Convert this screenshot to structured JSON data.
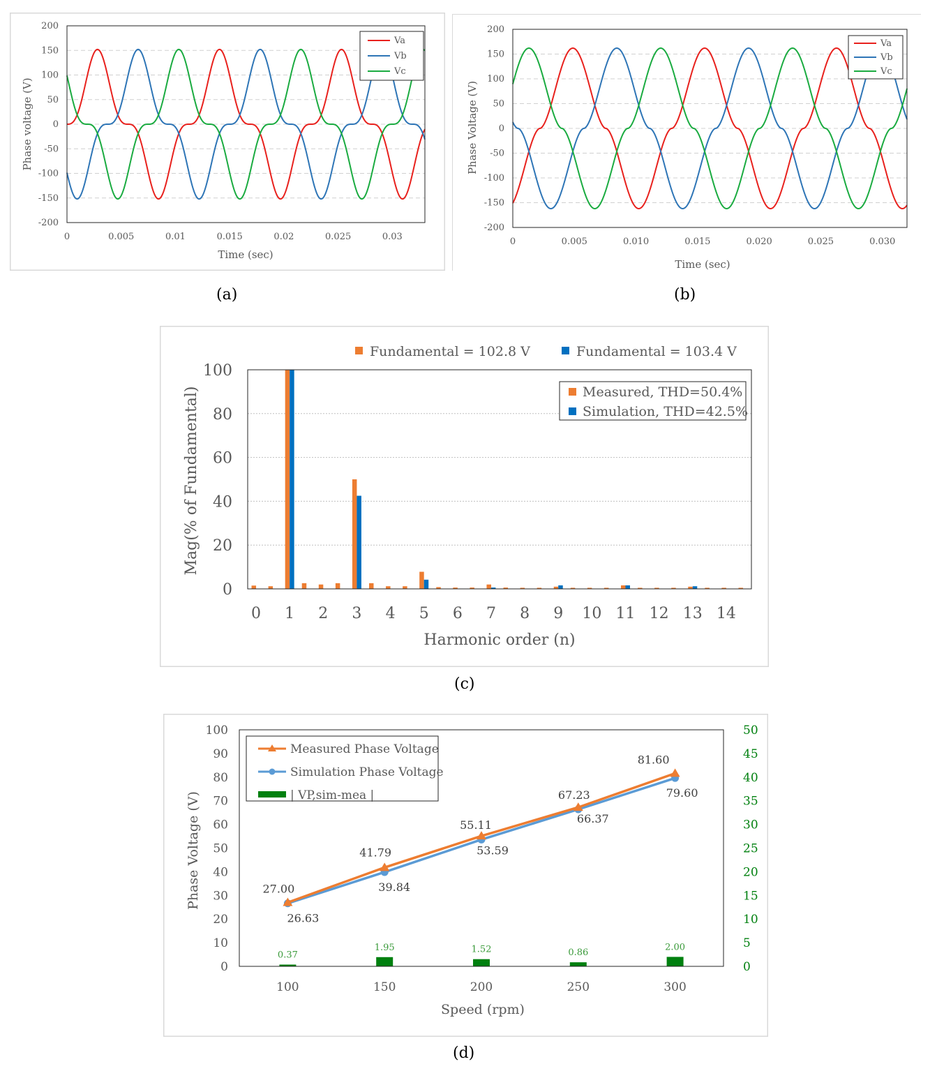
{
  "captions": {
    "a": "(a)",
    "b": "(b)",
    "c": "(c)",
    "d": "(d)"
  },
  "chart_data": [
    {
      "id": "a",
      "type": "line",
      "title": "",
      "xlabel": "Time (sec)",
      "ylabel": "Phase voltage (V)",
      "xlim": [
        0,
        0.033
      ],
      "ylim": [
        -200,
        200
      ],
      "xticks": [
        "0",
        "0.005",
        "0.01",
        "0.015",
        "0.02",
        "0.025",
        "0.03"
      ],
      "xtick_values": [
        0,
        0.005,
        0.01,
        0.015,
        0.02,
        0.025,
        0.03
      ],
      "yticks": [
        "200",
        "150",
        "100",
        "50",
        "0",
        "-50",
        "-100",
        "-150",
        "-200"
      ],
      "ytick_values": [
        200,
        150,
        100,
        50,
        0,
        -50,
        -100,
        -150,
        -200
      ],
      "legend_position": "top-right",
      "waveform": {
        "amplitude": 152,
        "period_sec": 0.01125,
        "sharpness": 3.0
      },
      "series": [
        {
          "name": "Va",
          "color": "#e8211d",
          "phase_deg": 0
        },
        {
          "name": "Vb",
          "color": "#2e75b6",
          "phase_deg": -120
        },
        {
          "name": "Vc",
          "color": "#1aab40",
          "phase_deg": 120
        }
      ]
    },
    {
      "id": "b",
      "type": "line",
      "title": "",
      "xlabel": "Time (sec)",
      "ylabel": "Phase Voltage (V)",
      "xlim": [
        0,
        0.032
      ],
      "ylim": [
        -200,
        200
      ],
      "xticks": [
        "0",
        "0.005",
        "0.010",
        "0.015",
        "0.020",
        "0.025",
        "0.030"
      ],
      "xtick_values": [
        0,
        0.005,
        0.01,
        0.015,
        0.02,
        0.025,
        0.03
      ],
      "yticks": [
        "200",
        "150",
        "100",
        "50",
        "0",
        "-50",
        "-100",
        "-150",
        "-200"
      ],
      "ytick_values": [
        200,
        150,
        100,
        50,
        0,
        -50,
        -100,
        -150,
        -200
      ],
      "legend_position": "top-right",
      "waveform": {
        "amplitude": 162,
        "period_sec": 0.0107,
        "sharpness": 1.8
      },
      "series": [
        {
          "name": "Va",
          "color": "#e8211d",
          "phase_deg": -74
        },
        {
          "name": "Vb",
          "color": "#2e75b6",
          "phase_deg": 166
        },
        {
          "name": "Vc",
          "color": "#1aab40",
          "phase_deg": 46
        }
      ]
    },
    {
      "id": "c",
      "type": "bar",
      "title": "",
      "xlabel": "Harmonic order (n)",
      "ylabel": "Mag(% of Fundamental)",
      "ylim": [
        0,
        100
      ],
      "yticks": [
        "100",
        "80",
        "60",
        "40",
        "20",
        "0"
      ],
      "ytick_values": [
        100,
        80,
        60,
        40,
        20,
        0
      ],
      "categories": [
        "0",
        "",
        "1",
        "",
        "2",
        "",
        "3",
        "",
        "4",
        "",
        "5",
        "",
        "6",
        "",
        "7",
        "",
        "8",
        "",
        "9",
        "",
        "10",
        "",
        "11",
        "",
        "12",
        "",
        "13",
        "",
        "14",
        ""
      ],
      "top_legend": [
        {
          "label": "Fundamental = 102.8 V",
          "color": "#ed7d31"
        },
        {
          "label": "Fundamental = 103.4 V",
          "color": "#0070c0"
        }
      ],
      "legend_position": "top-right",
      "series": [
        {
          "name": "Measured, THD=50.4%",
          "color": "#ed7d31",
          "values": [
            1.5,
            1.2,
            100,
            2.6,
            2.0,
            2.6,
            50,
            2.6,
            1.2,
            1.2,
            7.8,
            0.8,
            0.6,
            0.6,
            2.0,
            0.6,
            0.5,
            0.5,
            1.0,
            0.5,
            0.5,
            0.5,
            1.6,
            0.5,
            0.5,
            0.5,
            1.0,
            0.5,
            0.5,
            0.5
          ]
        },
        {
          "name": "Simulation, THD=42.5%",
          "color": "#0070c0",
          "values": [
            0,
            0,
            100,
            0,
            0,
            0,
            42.5,
            0,
            0,
            0,
            4.2,
            0,
            0,
            0,
            0.6,
            0,
            0,
            0,
            1.6,
            0,
            0,
            0,
            1.6,
            0,
            0,
            0,
            1.2,
            0,
            0,
            0
          ]
        }
      ]
    },
    {
      "id": "d",
      "type": "line",
      "title": "",
      "xlabel": "Speed (rpm)",
      "ylabel": "Phase Voltage (V)",
      "categories": [
        "100",
        "150",
        "200",
        "250",
        "300"
      ],
      "ylim": [
        0,
        100
      ],
      "y2lim": [
        0,
        50
      ],
      "yticks": [
        "0",
        "10",
        "20",
        "30",
        "40",
        "50",
        "60",
        "70",
        "80",
        "90",
        "100"
      ],
      "ytick_values": [
        0,
        10,
        20,
        30,
        40,
        50,
        60,
        70,
        80,
        90,
        100
      ],
      "y2ticks": [
        "0",
        "5",
        "10",
        "15",
        "20",
        "25",
        "30",
        "35",
        "40",
        "45",
        "50"
      ],
      "y2tick_values": [
        0,
        5,
        10,
        15,
        20,
        25,
        30,
        35,
        40,
        45,
        50
      ],
      "legend_position": "top-left",
      "series": [
        {
          "name": "Measured Phase Voltage",
          "color": "#ed7d31",
          "marker": "triangle",
          "values": [
            27.0,
            41.79,
            55.11,
            67.23,
            81.6
          ],
          "labels": [
            "27.00",
            "41.79",
            "55.11",
            "67.23",
            "81.60"
          ]
        },
        {
          "name": "Simulation Phase Voltage",
          "color": "#5b9bd5",
          "marker": "circle",
          "values": [
            26.63,
            39.84,
            53.59,
            66.37,
            79.6
          ],
          "labels": [
            "26.63",
            "39.84",
            "53.59",
            "66.37",
            "79.60"
          ]
        },
        {
          "name": "| VP,sim-mea |",
          "color": "#00800f",
          "type": "bar",
          "axis": "right",
          "values": [
            0.37,
            1.95,
            1.52,
            0.86,
            2.0
          ],
          "labels": [
            "0.37",
            "1.95",
            "1.52",
            "0.86",
            "2.00"
          ]
        }
      ]
    }
  ]
}
